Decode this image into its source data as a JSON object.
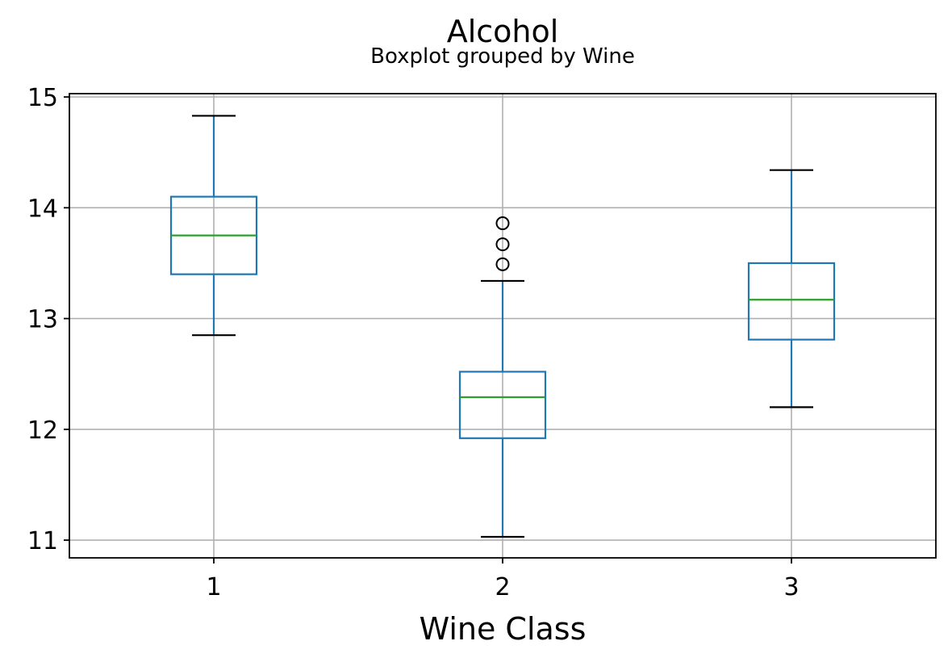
{
  "chart_data": {
    "type": "box",
    "title": "Alcohol",
    "subtitle": "Boxplot grouped by Wine",
    "xlabel": "Wine Class",
    "ylabel": "",
    "categories": [
      "1",
      "2",
      "3"
    ],
    "ylim": [
      10.84,
      15.03
    ],
    "yticks": [
      "11",
      "12",
      "13",
      "14",
      "15"
    ],
    "grid": true,
    "legend": "none",
    "boxes": [
      {
        "category": "1",
        "whisker_low": 12.85,
        "q1": 13.4,
        "median": 13.75,
        "q3": 14.1,
        "whisker_high": 14.83,
        "outliers": []
      },
      {
        "category": "2",
        "whisker_low": 11.03,
        "q1": 11.92,
        "median": 12.29,
        "q3": 12.52,
        "whisker_high": 13.34,
        "outliers": [
          13.49,
          13.67,
          13.86
        ]
      },
      {
        "category": "3",
        "whisker_low": 12.2,
        "q1": 12.81,
        "median": 13.17,
        "q3": 13.5,
        "whisker_high": 14.34,
        "outliers": []
      }
    ],
    "colors": {
      "box": "#1f77b4",
      "median": "#2ca02c",
      "cap": "#000000",
      "flier": "#000000",
      "grid": "#b0b0b0"
    }
  }
}
